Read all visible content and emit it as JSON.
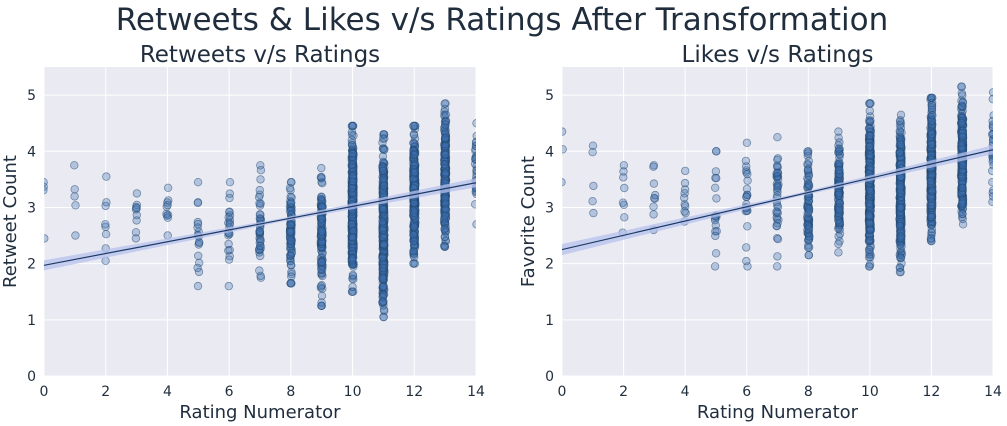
{
  "suptitle": "Retweets & Likes v/s Ratings After Transformation",
  "chart_data": [
    {
      "type": "scatter",
      "title": "Retweets v/s Ratings",
      "xlabel": "Rating Numerator",
      "ylabel": "Retweet Count",
      "xlim": [
        0,
        14
      ],
      "ylim": [
        0,
        5.5
      ],
      "xticks": [
        "0",
        "2",
        "4",
        "6",
        "8",
        "10",
        "12",
        "14"
      ],
      "yticks": [
        "0",
        "1",
        "2",
        "3",
        "4",
        "5"
      ],
      "grid": true,
      "regression": {
        "intercept": 1.97,
        "slope": 0.105,
        "ci_half_width": [
          0.09,
          0.03,
          0.08
        ]
      },
      "clusters": [
        {
          "x": 0,
          "y_min": 2.45,
          "y_max": 3.45,
          "n": 4
        },
        {
          "x": 1,
          "y_min": 2.5,
          "y_max": 3.75,
          "n": 5
        },
        {
          "x": 2,
          "y_min": 2.05,
          "y_max": 3.55,
          "n": 8
        },
        {
          "x": 3,
          "y_min": 2.45,
          "y_max": 3.25,
          "n": 9
        },
        {
          "x": 4,
          "y_min": 2.5,
          "y_max": 3.35,
          "n": 10
        },
        {
          "x": 5,
          "y_min": 1.6,
          "y_max": 3.45,
          "n": 18
        },
        {
          "x": 6,
          "y_min": 1.6,
          "y_max": 3.45,
          "n": 22
        },
        {
          "x": 7,
          "y_min": 1.75,
          "y_max": 3.75,
          "n": 40
        },
        {
          "x": 8,
          "y_min": 1.65,
          "y_max": 3.45,
          "n": 80
        },
        {
          "x": 9,
          "y_min": 1.25,
          "y_max": 3.7,
          "n": 120
        },
        {
          "x": 10,
          "y_min": 1.5,
          "y_max": 4.45,
          "n": 340
        },
        {
          "x": 11,
          "y_min": 1.05,
          "y_max": 4.3,
          "n": 300
        },
        {
          "x": 12,
          "y_min": 2.0,
          "y_max": 4.45,
          "n": 320
        },
        {
          "x": 13,
          "y_min": 2.3,
          "y_max": 4.85,
          "n": 260
        },
        {
          "x": 14,
          "y_min": 2.7,
          "y_max": 4.5,
          "n": 30
        }
      ]
    },
    {
      "type": "scatter",
      "title": "Likes v/s Ratings",
      "xlabel": "Rating Numerator",
      "ylabel": "Favorite Count",
      "xlim": [
        0,
        14
      ],
      "ylim": [
        0,
        5.5
      ],
      "xticks": [
        "0",
        "2",
        "4",
        "6",
        "8",
        "10",
        "12",
        "14"
      ],
      "yticks": [
        "0",
        "1",
        "2",
        "3",
        "4",
        "5"
      ],
      "grid": true,
      "regression": {
        "intercept": 2.25,
        "slope": 0.127,
        "ci_half_width": [
          0.1,
          0.03,
          0.08
        ]
      },
      "clusters": [
        {
          "x": 0,
          "y_min": 3.45,
          "y_max": 4.35,
          "n": 3
        },
        {
          "x": 1,
          "y_min": 2.9,
          "y_max": 4.1,
          "n": 5
        },
        {
          "x": 2,
          "y_min": 2.55,
          "y_max": 3.75,
          "n": 8
        },
        {
          "x": 3,
          "y_min": 2.6,
          "y_max": 3.75,
          "n": 9
        },
        {
          "x": 4,
          "y_min": 2.75,
          "y_max": 3.65,
          "n": 10
        },
        {
          "x": 5,
          "y_min": 1.95,
          "y_max": 4.0,
          "n": 18
        },
        {
          "x": 6,
          "y_min": 1.95,
          "y_max": 4.15,
          "n": 22
        },
        {
          "x": 7,
          "y_min": 1.95,
          "y_max": 4.25,
          "n": 40
        },
        {
          "x": 8,
          "y_min": 2.15,
          "y_max": 4.0,
          "n": 80
        },
        {
          "x": 9,
          "y_min": 2.2,
          "y_max": 4.35,
          "n": 120
        },
        {
          "x": 10,
          "y_min": 1.95,
          "y_max": 4.85,
          "n": 340
        },
        {
          "x": 11,
          "y_min": 1.85,
          "y_max": 4.65,
          "n": 300
        },
        {
          "x": 12,
          "y_min": 2.4,
          "y_max": 4.95,
          "n": 320
        },
        {
          "x": 13,
          "y_min": 2.7,
          "y_max": 5.15,
          "n": 260
        },
        {
          "x": 14,
          "y_min": 3.1,
          "y_max": 5.05,
          "n": 30
        }
      ]
    }
  ],
  "colors": {
    "panel": "#eaeaf2",
    "grid": "#ffffff",
    "point_fill": "#3d6fb0",
    "point_stroke": "#23486f",
    "regression_line": "#1c3a63",
    "ci_band": "#b5c2ee"
  }
}
